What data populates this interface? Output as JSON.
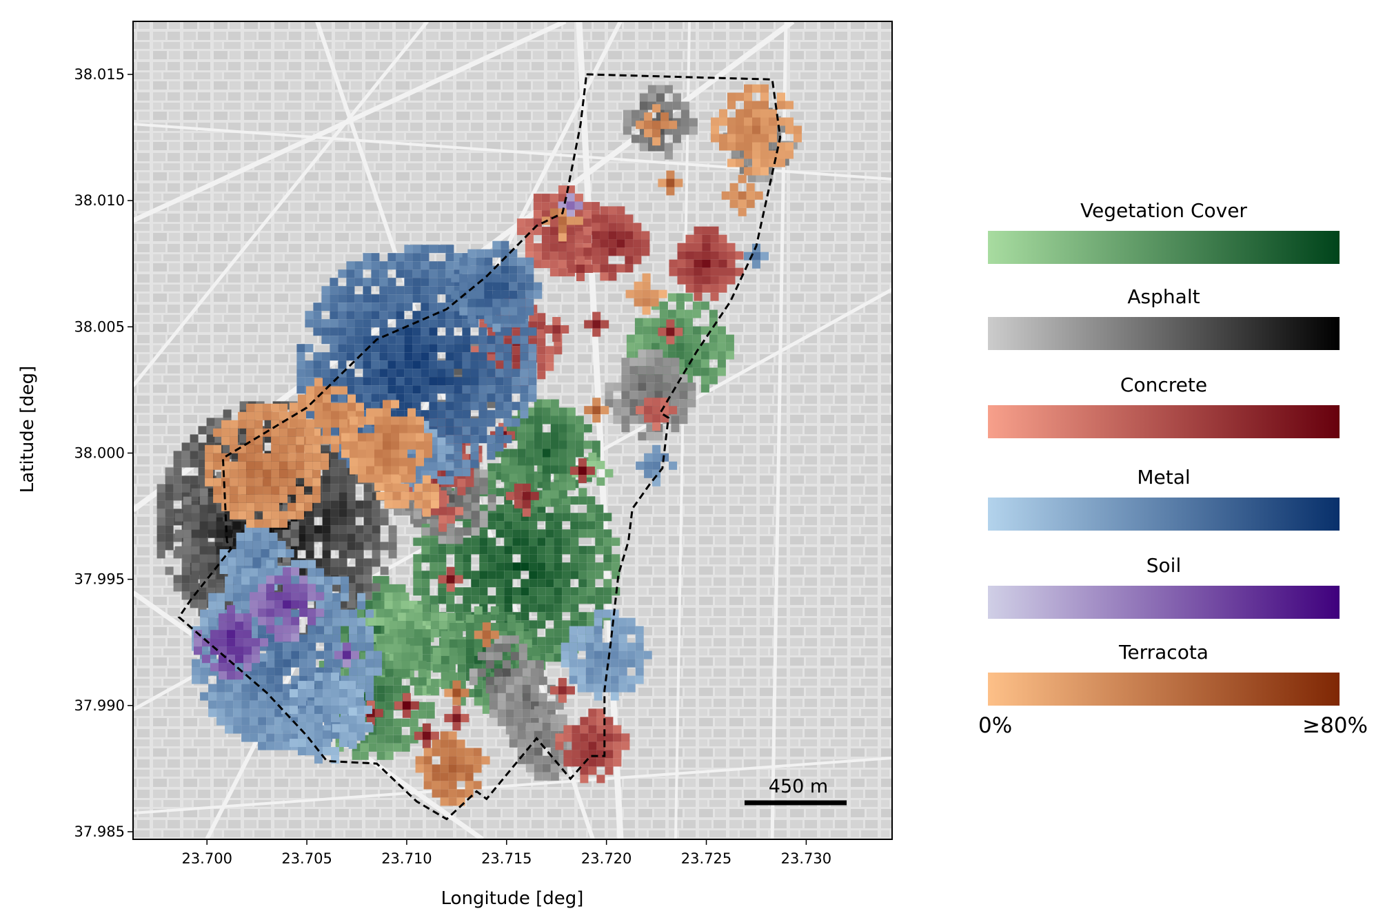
{
  "map": {
    "x_axis": {
      "label": "Longitude [deg]",
      "range": [
        23.6963,
        23.7343
      ],
      "ticks": [
        "23.700",
        "23.705",
        "23.710",
        "23.715",
        "23.720",
        "23.725",
        "23.730"
      ]
    },
    "y_axis": {
      "label": "Latitude [deg]",
      "range": [
        37.9847,
        38.0171
      ],
      "ticks": [
        "37.985",
        "37.990",
        "37.995",
        "38.000",
        "38.005",
        "38.010",
        "38.015"
      ]
    },
    "scale_bar": {
      "label": "450 m"
    },
    "boundary_color": "#000000",
    "study_area_boundary": [
      [
        23.719,
        38.015
      ],
      [
        23.7283,
        38.0148
      ],
      [
        23.7287,
        38.0125
      ],
      [
        23.7275,
        38.0082
      ],
      [
        23.7262,
        38.006
      ],
      [
        23.7245,
        38.004
      ],
      [
        23.7227,
        38.0016
      ],
      [
        23.7231,
        38.0014
      ],
      [
        23.7228,
        37.9994
      ],
      [
        23.7222,
        37.9988
      ],
      [
        23.7213,
        37.9978
      ],
      [
        23.7211,
        37.9965
      ],
      [
        23.7206,
        37.9952
      ],
      [
        23.7202,
        37.9924
      ],
      [
        23.7199,
        37.9906
      ],
      [
        23.7199,
        37.988
      ],
      [
        23.7192,
        37.988
      ],
      [
        23.7182,
        37.9871
      ],
      [
        23.7165,
        37.9887
      ],
      [
        23.714,
        37.9863
      ],
      [
        23.7135,
        37.9866
      ],
      [
        23.712,
        37.9855
      ],
      [
        23.7105,
        37.9862
      ],
      [
        23.7085,
        37.9877
      ],
      [
        23.706,
        37.9878
      ],
      [
        23.705,
        37.9888
      ],
      [
        23.703,
        37.9905
      ],
      [
        23.6986,
        37.9935
      ],
      [
        23.6992,
        37.9942
      ],
      [
        23.7012,
        37.9962
      ],
      [
        23.701,
        37.9965
      ],
      [
        23.7008,
        37.9998
      ],
      [
        23.705,
        38.0018
      ],
      [
        23.7085,
        38.0045
      ],
      [
        23.712,
        38.0057
      ],
      [
        23.714,
        38.007
      ],
      [
        23.7165,
        38.009
      ],
      [
        23.7178,
        38.0095
      ],
      [
        23.718,
        38.0102
      ],
      [
        23.7187,
        38.013
      ],
      [
        23.719,
        38.015
      ]
    ],
    "materials": [
      {
        "name": "Vegetation Cover",
        "color_low": "#a8dca0",
        "color_high": "#00441b",
        "patches": [
          [
            23.7155,
            37.9955,
            0.01,
            0.9
          ],
          [
            23.717,
            38.0,
            0.005,
            0.8
          ],
          [
            23.7085,
            37.993,
            0.005,
            0.7
          ],
          [
            23.7095,
            37.993,
            0.003,
            0.4
          ],
          [
            23.711,
            37.9922,
            0.004,
            0.5
          ],
          [
            23.714,
            37.9918,
            0.005,
            0.75
          ],
          [
            23.7083,
            37.9903,
            0.006,
            0.7
          ],
          [
            23.7237,
            38.0042,
            0.005,
            0.6
          ],
          [
            23.7193,
            37.9992,
            0.002,
            0.3
          ]
        ]
      },
      {
        "name": "Asphalt",
        "color_low": "#cccccc",
        "color_high": "#000000",
        "patches": [
          [
            23.7035,
            37.9973,
            0.012,
            0.9
          ],
          [
            23.7015,
            37.9968,
            0.006,
            0.85
          ],
          [
            23.7227,
            38.0131,
            0.003,
            0.55
          ],
          [
            23.7277,
            38.0122,
            0.003,
            0.5
          ],
          [
            23.713,
            38.0026,
            0.004,
            0.55
          ],
          [
            23.7108,
            37.999,
            0.004,
            0.5
          ],
          [
            23.7122,
            37.9982,
            0.004,
            0.5
          ],
          [
            23.715,
            37.9913,
            0.003,
            0.5
          ],
          [
            23.716,
            37.99,
            0.003,
            0.45
          ],
          [
            23.717,
            37.9885,
            0.003,
            0.45
          ],
          [
            23.7222,
            38.0023,
            0.004,
            0.45
          ],
          [
            23.7055,
            38.0008,
            0.002,
            0.5
          ],
          [
            23.7178,
            38.0082,
            0.002,
            0.4
          ]
        ]
      },
      {
        "name": "Concrete",
        "color_low": "#f7a08b",
        "color_high": "#67000d",
        "patches": [
          [
            23.7178,
            38.0088,
            0.004,
            0.6
          ],
          [
            23.7203,
            38.0083,
            0.003,
            0.8
          ],
          [
            23.725,
            38.0075,
            0.003,
            0.8
          ],
          [
            23.7155,
            38.0044,
            0.004,
            0.7
          ],
          [
            23.7115,
            37.9998,
            0.004,
            0.75
          ],
          [
            23.7112,
            38.0011,
            0.002,
            0.7
          ],
          [
            23.7187,
            38.0073,
            0.001,
            0.8
          ],
          [
            23.7175,
            38.0049,
            0.001,
            0.8
          ],
          [
            23.7195,
            38.0051,
            0.001,
            0.8
          ],
          [
            23.7232,
            38.0048,
            0.001,
            0.8
          ],
          [
            23.7148,
            38.0007,
            0.001,
            0.8
          ],
          [
            23.7125,
            37.9998,
            0.001,
            0.9
          ],
          [
            23.7188,
            37.9993,
            0.001,
            0.9
          ],
          [
            23.716,
            37.9983,
            0.002,
            0.85
          ],
          [
            23.71,
            37.99,
            0.001,
            0.9
          ],
          [
            23.7125,
            37.9895,
            0.001,
            0.85
          ],
          [
            23.7178,
            37.9906,
            0.001,
            0.8
          ],
          [
            23.711,
            37.9888,
            0.001,
            0.9
          ],
          [
            23.7082,
            37.9897,
            0.001,
            0.85
          ],
          [
            23.7122,
            37.995,
            0.001,
            0.8
          ],
          [
            23.7118,
            37.9977,
            0.002,
            0.5
          ],
          [
            23.7193,
            37.9884,
            0.003,
            0.7
          ],
          [
            23.7225,
            38.0017,
            0.002,
            0.5
          ]
        ]
      },
      {
        "name": "Metal",
        "color_low": "#b3d3ec",
        "color_high": "#08306b",
        "patches": [
          [
            23.7105,
            38.0035,
            0.012,
            0.9
          ],
          [
            23.7145,
            38.0066,
            0.004,
            0.8
          ],
          [
            23.7105,
            37.9998,
            0.003,
            0.5
          ],
          [
            23.7025,
            37.9957,
            0.003,
            0.55
          ],
          [
            23.704,
            37.992,
            0.009,
            0.6
          ],
          [
            23.702,
            37.9919,
            0.002,
            0.6
          ],
          [
            23.706,
            37.9895,
            0.004,
            0.45
          ],
          [
            23.7073,
            37.9891,
            0.002,
            0.35
          ],
          [
            23.72,
            37.992,
            0.004,
            0.45
          ],
          [
            23.7225,
            37.9995,
            0.002,
            0.55
          ],
          [
            23.7275,
            38.0078,
            0.001,
            0.6
          ]
        ]
      },
      {
        "name": "Soil",
        "color_low": "#d0cfe6",
        "color_high": "#3f007d",
        "patches": [
          [
            23.704,
            37.994,
            0.003,
            0.75
          ],
          [
            23.7012,
            37.9925,
            0.003,
            0.85
          ],
          [
            23.707,
            37.992,
            0.001,
            0.75
          ],
          [
            23.7182,
            38.0098,
            0.001,
            0.6
          ]
        ]
      },
      {
        "name": "Terracota",
        "color_low": "#fdc088",
        "color_high": "#7f2704",
        "patches": [
          [
            23.703,
            37.9995,
            0.006,
            0.5
          ],
          [
            23.706,
            38.0015,
            0.003,
            0.45
          ],
          [
            23.709,
            38.0003,
            0.004,
            0.45
          ],
          [
            23.7095,
            37.9983,
            0.002,
            0.3
          ],
          [
            23.711,
            37.9983,
            0.002,
            0.3
          ],
          [
            23.7225,
            38.013,
            0.002,
            0.5
          ],
          [
            23.7275,
            38.0128,
            0.004,
            0.4
          ],
          [
            23.7268,
            38.0102,
            0.002,
            0.4
          ],
          [
            23.7232,
            38.0107,
            0.001,
            0.6
          ],
          [
            23.722,
            38.0063,
            0.002,
            0.35
          ],
          [
            23.7195,
            38.0017,
            0.001,
            0.6
          ],
          [
            23.7178,
            38.0092,
            0.002,
            0.5
          ],
          [
            23.7123,
            37.9875,
            0.003,
            0.6
          ],
          [
            23.714,
            37.9928,
            0.001,
            0.6
          ],
          [
            23.7125,
            37.9905,
            0.001,
            0.65
          ]
        ]
      }
    ]
  },
  "legend": {
    "items": [
      {
        "title": "Vegetation Cover",
        "color_low": "#a8dca0",
        "color_high": "#00441b"
      },
      {
        "title": "Asphalt",
        "color_low": "#cccccc",
        "color_high": "#000000"
      },
      {
        "title": "Concrete",
        "color_low": "#f7a08b",
        "color_high": "#67000d"
      },
      {
        "title": "Metal",
        "color_low": "#b3d3ec",
        "color_high": "#08306b"
      },
      {
        "title": "Soil",
        "color_low": "#d0cfe6",
        "color_high": "#3f007d"
      },
      {
        "title": "Terracota",
        "color_low": "#fdc088",
        "color_high": "#7f2704"
      }
    ],
    "min_label": "0%",
    "max_label": "≥80%"
  }
}
